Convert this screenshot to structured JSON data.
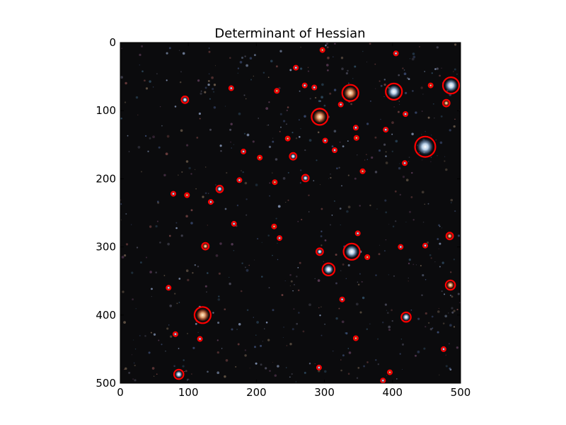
{
  "chart_data": {
    "type": "scatter",
    "title": "Determinant of Hessian",
    "xlabel": "",
    "ylabel": "",
    "xlim": [
      0,
      500
    ],
    "ylim": [
      500,
      0
    ],
    "y_inverted": true,
    "xticks": [
      "0",
      "100",
      "200",
      "300",
      "400",
      "500"
    ],
    "yticks": [
      "0",
      "100",
      "200",
      "300",
      "400",
      "500"
    ],
    "grid": false,
    "legend": "none",
    "background": "astronomical-image-hubble-deep-field",
    "marker": "circle-outline",
    "marker_color": "#ff0000",
    "series": [
      {
        "x": [
          297,
          405,
          258,
          338,
          402,
          486,
          456,
          271,
          285,
          230,
          163,
          95,
          293,
          324,
          419,
          479,
          346,
          390,
          347,
          448,
          301,
          246,
          315,
          181,
          205,
          254,
          418,
          356,
          272,
          175,
          227,
          146,
          78,
          98,
          133,
          167,
          226,
          234,
          349,
          125,
          340,
          293,
          363,
          412,
          448,
          484,
          306,
          71,
          485,
          326,
          420,
          121,
          81,
          117,
          346,
          86,
          292,
          396,
          386,
          475
        ],
        "y": [
          11,
          16,
          37,
          74,
          72,
          63,
          63,
          63,
          66,
          71,
          67,
          84,
          109,
          91,
          105,
          89,
          125,
          128,
          140,
          153,
          144,
          141,
          158,
          160,
          169,
          167,
          177,
          189,
          199,
          202,
          205,
          215,
          222,
          224,
          234,
          266,
          270,
          287,
          280,
          299,
          307,
          307,
          315,
          300,
          298,
          284,
          333,
          360,
          356,
          377,
          403,
          400,
          428,
          435,
          434,
          487,
          477,
          484,
          496,
          450
        ],
        "r": [
          3,
          3,
          3,
          12,
          12,
          12,
          3,
          3,
          3,
          3,
          3,
          5,
          12,
          3,
          3,
          5,
          3,
          3,
          3,
          15,
          3,
          3,
          3,
          3,
          3,
          5,
          3,
          3,
          5,
          3,
          3,
          5,
          3,
          3,
          3,
          3,
          3,
          3,
          3,
          5,
          12,
          5,
          3,
          3,
          3,
          5,
          9,
          3,
          7,
          3,
          7,
          12,
          3,
          3,
          3,
          7,
          3,
          3,
          3,
          3
        ]
      }
    ]
  }
}
